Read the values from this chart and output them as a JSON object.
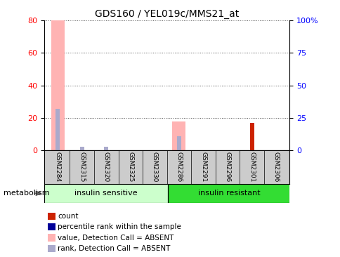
{
  "title": "GDS160 / YEL019c/MMS21_at",
  "samples": [
    "GSM2284",
    "GSM2315",
    "GSM2320",
    "GSM2325",
    "GSM2330",
    "GSM2286",
    "GSM2291",
    "GSM2296",
    "GSM2301",
    "GSM2306"
  ],
  "pink_values": [
    80,
    0,
    0,
    0,
    0,
    18,
    0,
    0,
    0,
    0
  ],
  "blue_rank_values": [
    32,
    3,
    3,
    0,
    0,
    11,
    0,
    0,
    21,
    0
  ],
  "red_count_values": [
    0,
    0,
    0,
    0,
    0,
    0,
    0,
    0,
    17,
    0
  ],
  "left_ylim": [
    0,
    80
  ],
  "right_ylim": [
    0,
    100
  ],
  "left_yticks": [
    0,
    20,
    40,
    60,
    80
  ],
  "right_yticks": [
    0,
    25,
    50,
    75,
    100
  ],
  "right_yticklabels": [
    "0",
    "25",
    "50",
    "75",
    "100%"
  ],
  "group1_label": "insulin sensitive",
  "group2_label": "insulin resistant",
  "metabolism_label": "metabolism",
  "legend_labels": [
    "count",
    "percentile rank within the sample",
    "value, Detection Call = ABSENT",
    "rank, Detection Call = ABSENT"
  ],
  "pink_color": "#ffb3b3",
  "blue_color": "#aaaacc",
  "red_color": "#cc2200",
  "navy_color": "#000099",
  "bg_color": "#ffffff",
  "group_box_color": "#cccccc",
  "group1_bg": "#ccffcc",
  "group2_bg": "#33dd33",
  "dotted_line_color": "#555555",
  "pink_bar_width": 0.55,
  "blue_bar_width": 0.18
}
